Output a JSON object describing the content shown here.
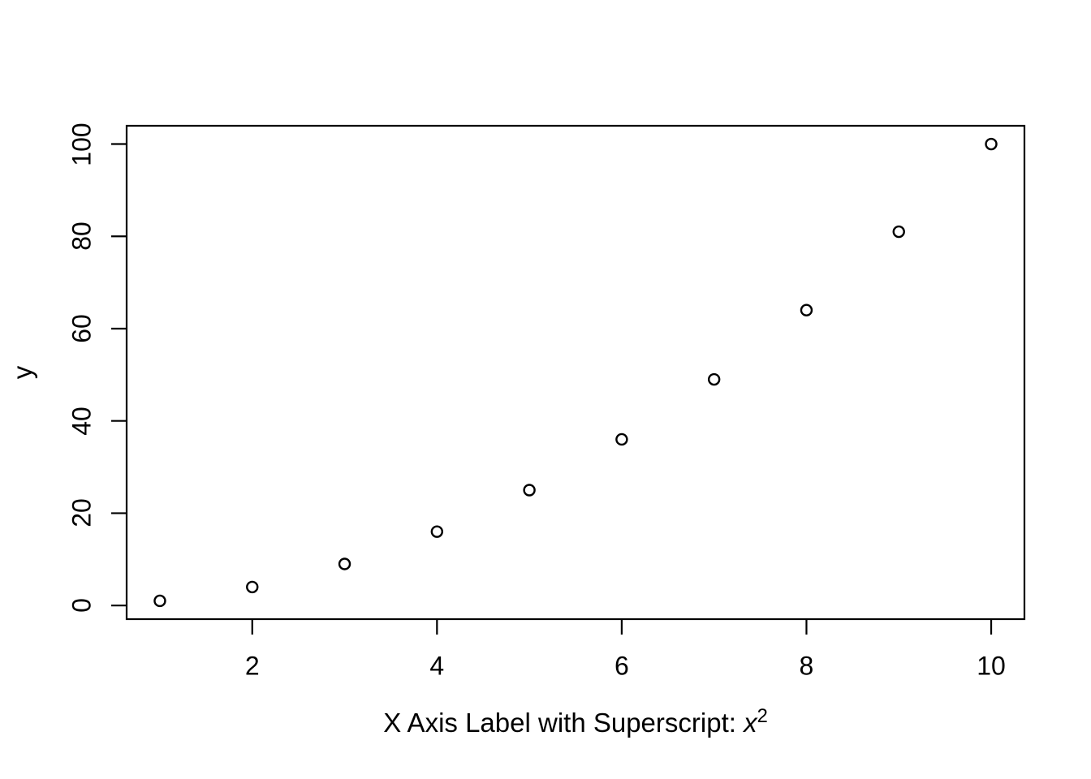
{
  "figure": {
    "background_color": "#ffffff",
    "foreground_color": "#000000"
  },
  "chart_data": {
    "type": "scatter",
    "x": [
      1,
      2,
      3,
      4,
      5,
      6,
      7,
      8,
      9,
      10
    ],
    "y": [
      1,
      4,
      9,
      16,
      25,
      36,
      49,
      64,
      81,
      100
    ],
    "title": "",
    "xlabel": "X Axis Label with Superscript: x^2",
    "xlabel_parts": {
      "prefix": "X Axis Label with Superscript: ",
      "variable": "x",
      "superscript": "2"
    },
    "ylabel": "y",
    "x_ticks": [
      2,
      4,
      6,
      8,
      10
    ],
    "y_ticks": [
      0,
      20,
      40,
      60,
      80,
      100
    ],
    "xlim": [
      0.64,
      10.36
    ],
    "ylim": [
      -2.96,
      103.96
    ],
    "grid": false,
    "legend": false,
    "marker": "open-circle",
    "marker_color": "#000000",
    "box": true
  }
}
